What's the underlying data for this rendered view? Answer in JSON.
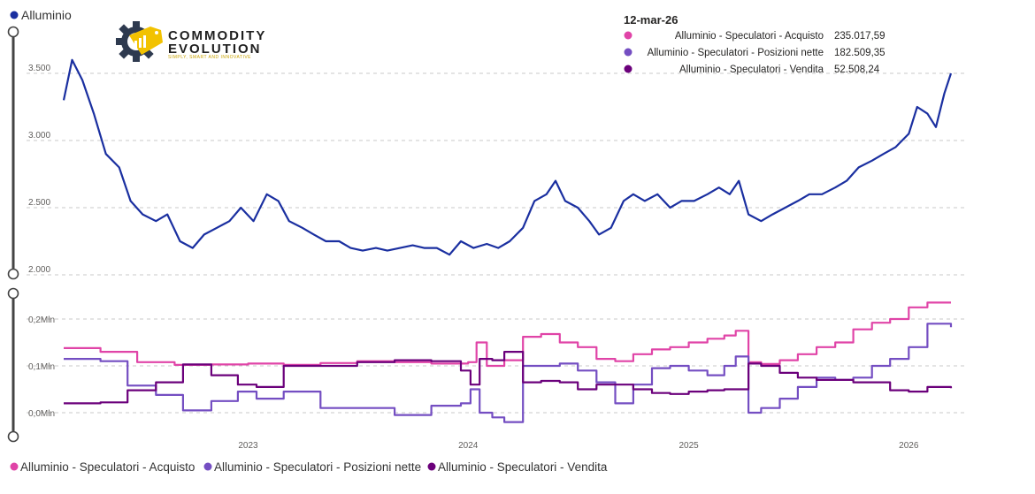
{
  "series_title": "Alluminio",
  "logo": {
    "line1": "COMMODITY",
    "line2": "EVOLUTION",
    "tagline": "SIMPLY, SMART AND INNOVATIVE"
  },
  "tooltip": {
    "date": "12-mar-26",
    "rows": [
      {
        "label": "Alluminio - Speculatori - Acquisto",
        "value": "235.017,59",
        "color": "#e044a7"
      },
      {
        "label": "Alluminio - Speculatori - Posizioni nette",
        "value": "182.509,35",
        "color": "#744ec2"
      },
      {
        "label": "Alluminio - Speculatori - Vendita",
        "value": "52.508,24",
        "color": "#6b007b"
      }
    ]
  },
  "legend": [
    {
      "label": "Alluminio - Speculatori - Acquisto",
      "color": "#e044a7"
    },
    {
      "label": "Alluminio - Speculatori - Posizioni nette",
      "color": "#744ec2"
    },
    {
      "label": "Alluminio - Speculatori - Vendita",
      "color": "#6b007b"
    }
  ],
  "chart_data": [
    {
      "type": "line",
      "title": "Alluminio",
      "ylim": [
        2000,
        3500
      ],
      "ytick_labels": [
        "2.000",
        "2.500",
        "3.000",
        "3.500"
      ],
      "ytick_values": [
        2000,
        2500,
        3000,
        3500
      ],
      "grid": true,
      "series": [
        {
          "color": "#1a2fa0",
          "x": [
            "2022-03-01",
            "2022-03-15",
            "2022-04-01",
            "2022-04-20",
            "2022-05-10",
            "2022-06-01",
            "2022-06-20",
            "2022-07-10",
            "2022-08-01",
            "2022-08-20",
            "2022-09-10",
            "2022-10-01",
            "2022-10-20",
            "2022-11-10",
            "2022-12-01",
            "2022-12-20",
            "2023-01-10",
            "2023-02-01",
            "2023-02-20",
            "2023-03-10",
            "2023-04-01",
            "2023-04-20",
            "2023-05-10",
            "2023-06-01",
            "2023-06-20",
            "2023-07-10",
            "2023-08-01",
            "2023-08-20",
            "2023-09-10",
            "2023-10-01",
            "2023-10-20",
            "2023-11-10",
            "2023-12-01",
            "2023-12-20",
            "2024-01-10",
            "2024-02-01",
            "2024-02-20",
            "2024-03-10",
            "2024-04-01",
            "2024-04-20",
            "2024-05-10",
            "2024-05-25",
            "2024-06-10",
            "2024-07-01",
            "2024-07-20",
            "2024-08-05",
            "2024-08-25",
            "2024-09-15",
            "2024-10-01",
            "2024-10-20",
            "2024-11-10",
            "2024-12-01",
            "2024-12-20",
            "2025-01-10",
            "2025-02-01",
            "2025-02-20",
            "2025-03-10",
            "2025-03-25",
            "2025-04-10",
            "2025-05-01",
            "2025-05-20",
            "2025-06-10",
            "2025-07-01",
            "2025-07-20",
            "2025-08-10",
            "2025-09-01",
            "2025-09-20",
            "2025-10-10",
            "2025-11-01",
            "2025-11-20",
            "2025-12-10",
            "2026-01-01",
            "2026-01-15",
            "2026-02-01",
            "2026-02-15",
            "2026-03-01",
            "2026-03-12"
          ],
          "values": [
            3300,
            3600,
            3450,
            3200,
            2900,
            2800,
            2550,
            2450,
            2400,
            2450,
            2250,
            2200,
            2300,
            2350,
            2400,
            2500,
            2400,
            2600,
            2550,
            2400,
            2350,
            2300,
            2250,
            2250,
            2200,
            2180,
            2200,
            2180,
            2200,
            2220,
            2200,
            2200,
            2150,
            2250,
            2200,
            2230,
            2200,
            2250,
            2350,
            2550,
            2600,
            2700,
            2550,
            2500,
            2400,
            2300,
            2350,
            2550,
            2600,
            2550,
            2600,
            2500,
            2550,
            2550,
            2600,
            2650,
            2600,
            2700,
            2450,
            2400,
            2450,
            2500,
            2550,
            2600,
            2600,
            2650,
            2700,
            2800,
            2850,
            2900,
            2950,
            3050,
            3250,
            3200,
            3100,
            3350,
            3500
          ]
        }
      ]
    },
    {
      "type": "line",
      "ylim": [
        0,
        230000
      ],
      "ytick_labels": [
        "0,0Mln",
        "0,1Mln",
        "0,2Mln"
      ],
      "ytick_values": [
        0,
        100000,
        200000
      ],
      "xtick_labels": [
        "2023",
        "2024",
        "2025",
        "2026"
      ],
      "xtick_values": [
        "2023-01-01",
        "2024-01-01",
        "2025-01-01",
        "2026-01-01"
      ],
      "grid": true,
      "series": [
        {
          "name": "Alluminio - Speculatori - Acquisto",
          "color": "#e044a7",
          "x": [
            "2022-03-01",
            "2022-05-01",
            "2022-07-01",
            "2022-09-01",
            "2022-11-01",
            "2023-01-01",
            "2023-03-01",
            "2023-05-01",
            "2023-07-01",
            "2023-09-01",
            "2023-11-01",
            "2024-01-01",
            "2024-01-15",
            "2024-02-01",
            "2024-03-01",
            "2024-04-01",
            "2024-05-01",
            "2024-06-01",
            "2024-07-01",
            "2024-08-01",
            "2024-09-01",
            "2024-10-01",
            "2024-11-01",
            "2024-12-01",
            "2025-01-01",
            "2025-02-01",
            "2025-03-01",
            "2025-03-20",
            "2025-04-10",
            "2025-05-01",
            "2025-06-01",
            "2025-07-01",
            "2025-08-01",
            "2025-09-01",
            "2025-10-01",
            "2025-11-01",
            "2025-12-01",
            "2026-01-01",
            "2026-02-01",
            "2026-03-12"
          ],
          "values": [
            138000,
            130000,
            108000,
            102000,
            103000,
            105000,
            102000,
            106000,
            110000,
            108000,
            105000,
            108000,
            150000,
            100000,
            112000,
            162000,
            168000,
            150000,
            140000,
            115000,
            110000,
            125000,
            135000,
            140000,
            150000,
            158000,
            165000,
            175000,
            108000,
            104000,
            112000,
            125000,
            140000,
            150000,
            178000,
            192000,
            200000,
            225000,
            235000,
            235000
          ]
        },
        {
          "name": "Alluminio - Speculatori - Posizioni nette",
          "color": "#744ec2",
          "x": [
            "2022-03-01",
            "2022-05-01",
            "2022-06-15",
            "2022-08-01",
            "2022-09-15",
            "2022-11-01",
            "2022-12-15",
            "2023-01-15",
            "2023-03-01",
            "2023-05-01",
            "2023-07-01",
            "2023-09-01",
            "2023-11-01",
            "2023-12-20",
            "2024-01-05",
            "2024-01-20",
            "2024-02-10",
            "2024-03-01",
            "2024-04-01",
            "2024-05-01",
            "2024-06-01",
            "2024-07-01",
            "2024-08-01",
            "2024-09-01",
            "2024-10-01",
            "2024-11-01",
            "2024-12-01",
            "2025-01-01",
            "2025-02-01",
            "2025-03-01",
            "2025-03-20",
            "2025-04-10",
            "2025-05-01",
            "2025-06-01",
            "2025-07-01",
            "2025-08-01",
            "2025-09-01",
            "2025-10-01",
            "2025-11-01",
            "2025-12-01",
            "2026-01-01",
            "2026-02-01",
            "2026-03-12"
          ],
          "values": [
            115000,
            110000,
            58000,
            38000,
            5000,
            25000,
            45000,
            30000,
            45000,
            10000,
            10000,
            -5000,
            15000,
            20000,
            50000,
            0,
            -10000,
            -20000,
            100000,
            100000,
            105000,
            90000,
            65000,
            20000,
            60000,
            95000,
            100000,
            90000,
            80000,
            100000,
            120000,
            0,
            10000,
            30000,
            55000,
            75000,
            70000,
            75000,
            100000,
            115000,
            140000,
            190000,
            182509
          ]
        },
        {
          "name": "Alluminio - Speculatori - Vendita",
          "color": "#6b007b",
          "x": [
            "2022-03-01",
            "2022-05-01",
            "2022-06-15",
            "2022-08-01",
            "2022-09-15",
            "2022-11-01",
            "2022-12-15",
            "2023-01-15",
            "2023-03-01",
            "2023-05-01",
            "2023-07-01",
            "2023-09-01",
            "2023-11-01",
            "2023-12-20",
            "2024-01-05",
            "2024-01-20",
            "2024-02-10",
            "2024-03-01",
            "2024-04-01",
            "2024-05-01",
            "2024-06-01",
            "2024-07-01",
            "2024-08-01",
            "2024-09-01",
            "2024-10-01",
            "2024-11-01",
            "2024-12-01",
            "2025-01-01",
            "2025-02-01",
            "2025-03-01",
            "2025-03-20",
            "2025-04-10",
            "2025-05-01",
            "2025-06-01",
            "2025-07-01",
            "2025-08-01",
            "2025-09-01",
            "2025-10-01",
            "2025-11-01",
            "2025-12-01",
            "2026-01-01",
            "2026-02-01",
            "2026-03-12"
          ],
          "values": [
            20000,
            22000,
            48000,
            65000,
            103000,
            80000,
            60000,
            55000,
            100000,
            100000,
            108000,
            112000,
            110000,
            90000,
            60000,
            115000,
            112000,
            130000,
            65000,
            68000,
            65000,
            50000,
            60000,
            60000,
            50000,
            42000,
            40000,
            45000,
            48000,
            50000,
            50000,
            105000,
            100000,
            85000,
            75000,
            70000,
            70000,
            65000,
            65000,
            48000,
            45000,
            55000,
            52508
          ]
        }
      ]
    }
  ]
}
